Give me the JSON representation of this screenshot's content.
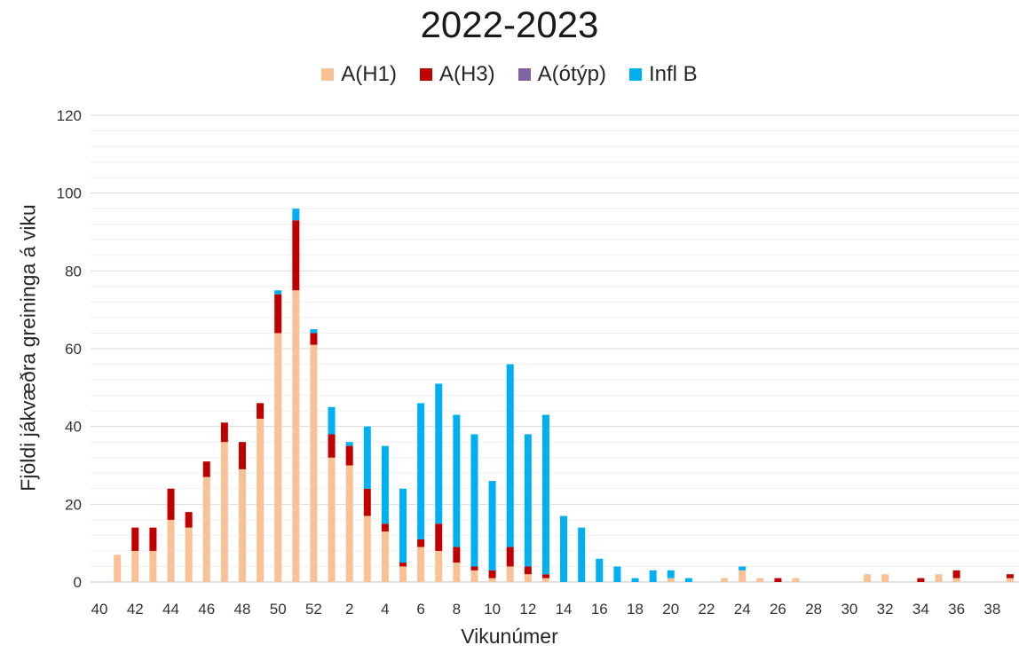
{
  "chart_data": {
    "type": "bar",
    "stacked": true,
    "title": "2022-2023",
    "xlabel": "Vikunúmer",
    "ylabel": "Fjöldi jákvæðra greininga á viku",
    "ylim": [
      0,
      120
    ],
    "yticks": [
      0,
      20,
      40,
      60,
      80,
      100,
      120
    ],
    "grid": true,
    "legend_position": "top",
    "categories": [
      "40",
      "41",
      "42",
      "43",
      "44",
      "45",
      "46",
      "47",
      "48",
      "49",
      "50",
      "51",
      "52",
      "1",
      "2",
      "3",
      "4",
      "5",
      "6",
      "7",
      "8",
      "9",
      "10",
      "11",
      "12",
      "13",
      "14",
      "15",
      "16",
      "17",
      "18",
      "19",
      "20",
      "21",
      "22",
      "23",
      "24",
      "25",
      "26",
      "27",
      "28",
      "29",
      "30",
      "31",
      "32",
      "33",
      "34",
      "35",
      "36",
      "37",
      "38",
      "39"
    ],
    "xtick_labels": [
      "40",
      "42",
      "44",
      "46",
      "48",
      "50",
      "52",
      "2",
      "4",
      "6",
      "8",
      "10",
      "12",
      "14",
      "16",
      "18",
      "20",
      "22",
      "24",
      "26",
      "28",
      "30",
      "32",
      "34",
      "36",
      "38"
    ],
    "series": [
      {
        "name": "A(H1)",
        "color": "#F8C196",
        "values": [
          0,
          7,
          8,
          8,
          16,
          14,
          27,
          36,
          29,
          42,
          64,
          75,
          61,
          32,
          30,
          17,
          13,
          4,
          9,
          8,
          5,
          3,
          1,
          4,
          2,
          1,
          0,
          0,
          0,
          0,
          0,
          0,
          1,
          0,
          0,
          1,
          3,
          1,
          0,
          1,
          0,
          0,
          0,
          2,
          2,
          0,
          0,
          2,
          1,
          0,
          0,
          1
        ]
      },
      {
        "name": "A(H3)",
        "color": "#C00000",
        "values": [
          0,
          0,
          6,
          6,
          8,
          4,
          4,
          5,
          7,
          4,
          10,
          18,
          3,
          6,
          5,
          7,
          2,
          1,
          2,
          7,
          4,
          1,
          2,
          5,
          2,
          1,
          0,
          0,
          0,
          0,
          0,
          0,
          0,
          0,
          0,
          0,
          0,
          0,
          1,
          0,
          0,
          0,
          0,
          0,
          0,
          0,
          1,
          0,
          2,
          0,
          0,
          1
        ]
      },
      {
        "name": "A(ótýp)",
        "color": "#8064A2",
        "values": [
          0,
          0,
          0,
          0,
          0,
          0,
          0,
          0,
          0,
          0,
          0,
          0,
          0,
          0,
          0,
          0,
          0,
          0,
          0,
          0,
          0,
          0,
          0,
          0,
          0,
          0,
          0,
          0,
          0,
          0,
          0,
          0,
          0,
          0,
          0,
          0,
          0,
          0,
          0,
          0,
          0,
          0,
          0,
          0,
          0,
          0,
          0,
          0,
          0,
          0,
          0,
          0
        ]
      },
      {
        "name": "Infl B",
        "color": "#00B0F0",
        "values": [
          0,
          0,
          0,
          0,
          0,
          0,
          0,
          0,
          0,
          0,
          1,
          3,
          1,
          7,
          1,
          16,
          20,
          19,
          35,
          36,
          34,
          34,
          23,
          47,
          34,
          41,
          17,
          14,
          6,
          4,
          1,
          3,
          2,
          1,
          0,
          0,
          1,
          0,
          0,
          0,
          0,
          0,
          0,
          0,
          0,
          0,
          0,
          0,
          0,
          0,
          0,
          0
        ]
      }
    ]
  }
}
